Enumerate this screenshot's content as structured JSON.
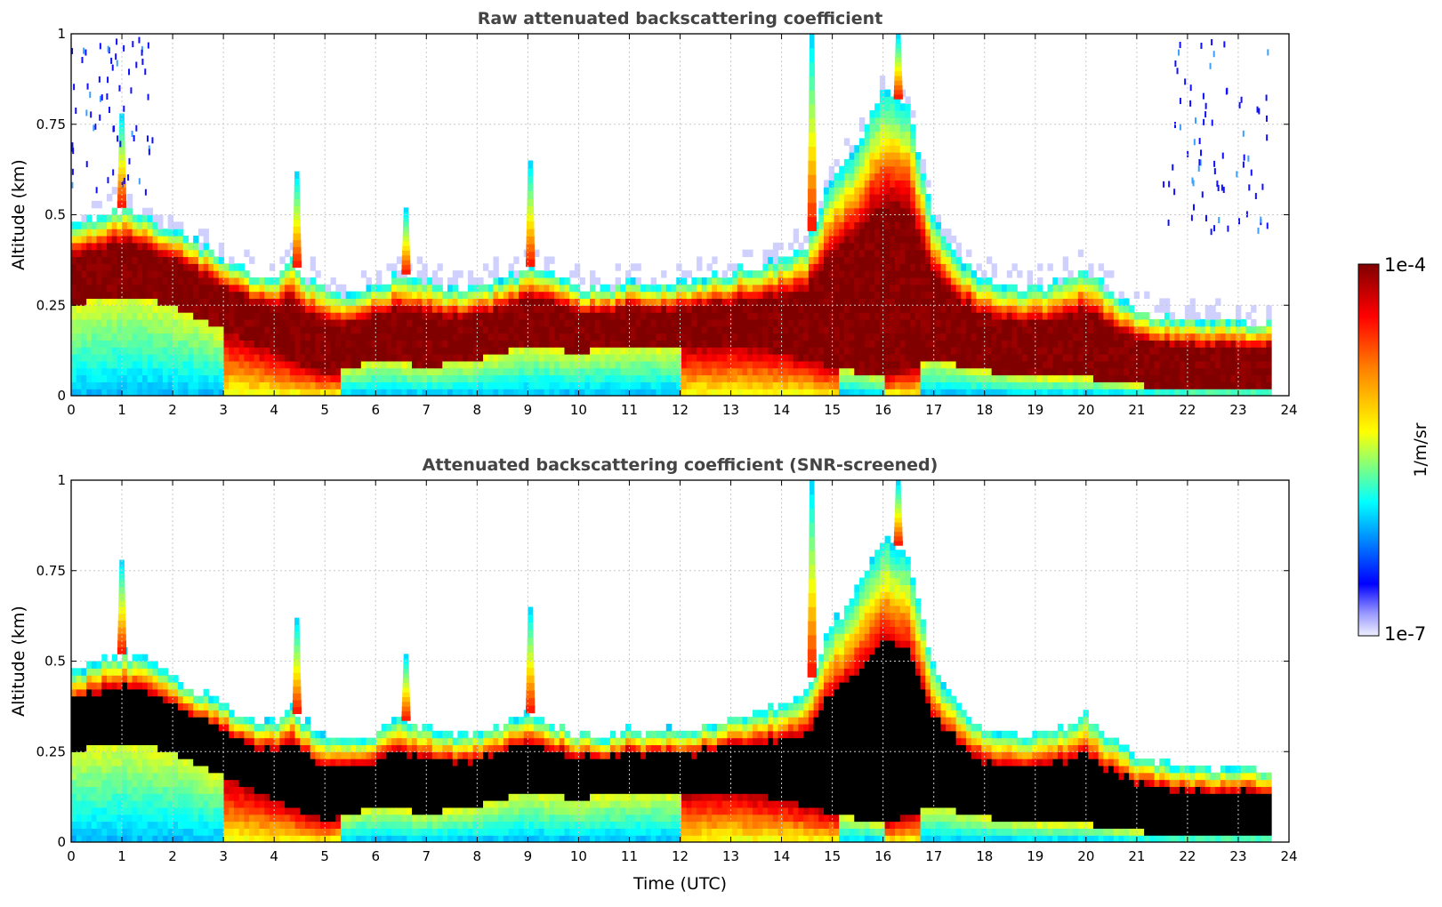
{
  "colors": {
    "jet_high": "#800000",
    "jet_low": "#0000ff",
    "screened_core": "#000000",
    "grid": "#c8c8c8"
  },
  "chart_data": [
    {
      "type": "heatmap",
      "title": "Raw attenuated backscattering coefficient",
      "xlabel": "",
      "ylabel": "Altitude (km)",
      "xlim": [
        0,
        24
      ],
      "ylim": [
        0,
        1
      ],
      "x_ticks": [
        "0",
        "1",
        "2",
        "3",
        "4",
        "5",
        "6",
        "7",
        "8",
        "9",
        "10",
        "11",
        "12",
        "13",
        "14",
        "15",
        "16",
        "17",
        "18",
        "19",
        "20",
        "21",
        "22",
        "23",
        "24"
      ],
      "y_ticks": [
        "0",
        "0.25",
        "0.5",
        "0.75",
        "1"
      ],
      "grid": true,
      "data_end_time": 23.65,
      "layer_top_km": {
        "time": [
          0,
          0.5,
          1,
          1.5,
          2,
          2.5,
          3,
          3.5,
          4,
          4.3,
          4.6,
          5,
          5.5,
          6,
          6.5,
          7,
          7.5,
          8,
          8.5,
          9,
          9.5,
          10,
          10.5,
          11,
          11.5,
          12,
          12.5,
          13,
          13.5,
          14,
          14.5,
          15,
          15.5,
          16,
          16.5,
          17,
          17.5,
          18,
          18.5,
          19,
          19.5,
          20,
          20.5,
          21,
          21.5,
          22,
          22.5,
          23,
          23.65
        ],
        "values": [
          0.47,
          0.5,
          0.52,
          0.5,
          0.46,
          0.42,
          0.38,
          0.34,
          0.33,
          0.38,
          0.33,
          0.3,
          0.28,
          0.3,
          0.34,
          0.32,
          0.3,
          0.3,
          0.32,
          0.36,
          0.33,
          0.3,
          0.29,
          0.31,
          0.3,
          0.31,
          0.32,
          0.34,
          0.36,
          0.38,
          0.42,
          0.6,
          0.7,
          0.85,
          0.8,
          0.48,
          0.38,
          0.32,
          0.3,
          0.3,
          0.32,
          0.35,
          0.28,
          0.24,
          0.22,
          0.21,
          0.21,
          0.21,
          0.2
        ]
      },
      "layer_bottom_km": {
        "time": [
          0,
          1,
          2,
          3,
          4,
          5,
          6,
          7,
          8,
          9,
          10,
          11,
          12,
          13,
          14,
          15,
          16,
          17,
          18,
          19,
          20,
          21,
          22,
          23,
          23.65
        ],
        "values": [
          0.25,
          0.28,
          0.25,
          0.18,
          0.12,
          0.06,
          0.1,
          0.08,
          0.1,
          0.14,
          0.12,
          0.14,
          0.13,
          0.14,
          0.12,
          0.08,
          0.05,
          0.1,
          0.07,
          0.05,
          0.05,
          0.03,
          0.02,
          0.02,
          0.02
        ]
      },
      "plumes": [
        {
          "time": 1.0,
          "top_km": 0.78
        },
        {
          "time": 4.45,
          "top_km": 0.62
        },
        {
          "time": 6.6,
          "top_km": 0.52
        },
        {
          "time": 9.05,
          "top_km": 0.65
        },
        {
          "time": 14.6,
          "top_km": 1.0
        },
        {
          "time": 16.3,
          "top_km": 1.0
        }
      ]
    },
    {
      "type": "heatmap",
      "title": "Attenuated backscattering coefficient (SNR-screened)",
      "xlabel": "Time (UTC)",
      "ylabel": "Altitude (km)",
      "xlim": [
        0,
        24
      ],
      "ylim": [
        0,
        1
      ],
      "x_ticks": [
        "0",
        "1",
        "2",
        "3",
        "4",
        "5",
        "6",
        "7",
        "8",
        "9",
        "10",
        "11",
        "12",
        "13",
        "14",
        "15",
        "16",
        "17",
        "18",
        "19",
        "20",
        "21",
        "22",
        "23",
        "24"
      ],
      "y_ticks": [
        "0",
        "0.25",
        "0.5",
        "0.75",
        "1"
      ],
      "grid": true,
      "screened_value_color": "black"
    }
  ],
  "colorbar": {
    "label": "1/m/sr",
    "max_label": "1e-4",
    "min_label": "1e-7"
  }
}
